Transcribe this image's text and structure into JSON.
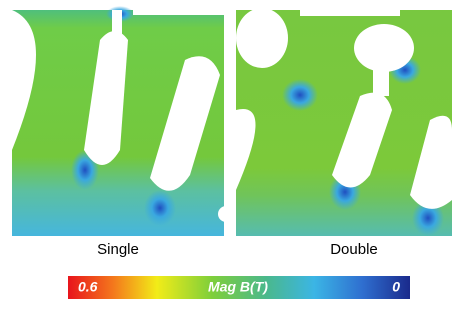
{
  "panels": [
    {
      "label": "Single"
    },
    {
      "label": "Double"
    }
  ],
  "colorbar": {
    "max": 0.6,
    "title": "Mag B(T)",
    "min": 0
  }
}
